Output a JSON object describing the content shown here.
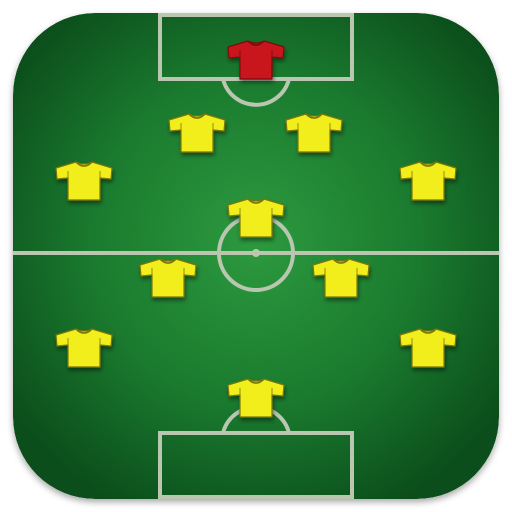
{
  "icon": {
    "name": "football-formation-app-icon",
    "colors": {
      "pitch_center": "#2d9a3f",
      "pitch_mid": "#1a7a2e",
      "pitch_edge": "#0b4d1b",
      "lines": "#b9c7b1",
      "goalkeeper_shirt": "#c8141b",
      "outfield_shirt": "#f2ee1c",
      "shirt_outline": "#7a7608"
    },
    "players": [
      {
        "name": "goalkeeper",
        "team_role": "goalkeeper",
        "kit": "red"
      },
      {
        "name": "centre-midfielder-left",
        "team_role": "midfielder",
        "kit": "yellow"
      },
      {
        "name": "centre-midfielder-right",
        "team_role": "midfielder",
        "kit": "yellow"
      },
      {
        "name": "left-wide-midfielder",
        "team_role": "midfielder",
        "kit": "yellow"
      },
      {
        "name": "right-wide-midfielder",
        "team_role": "midfielder",
        "kit": "yellow"
      },
      {
        "name": "attacking-midfielder",
        "team_role": "midfielder",
        "kit": "yellow"
      },
      {
        "name": "forward-left",
        "team_role": "forward",
        "kit": "yellow"
      },
      {
        "name": "forward-right",
        "team_role": "forward",
        "kit": "yellow"
      },
      {
        "name": "left-winger",
        "team_role": "forward",
        "kit": "yellow"
      },
      {
        "name": "right-winger",
        "team_role": "forward",
        "kit": "yellow"
      },
      {
        "name": "striker",
        "team_role": "forward",
        "kit": "yellow"
      }
    ]
  }
}
